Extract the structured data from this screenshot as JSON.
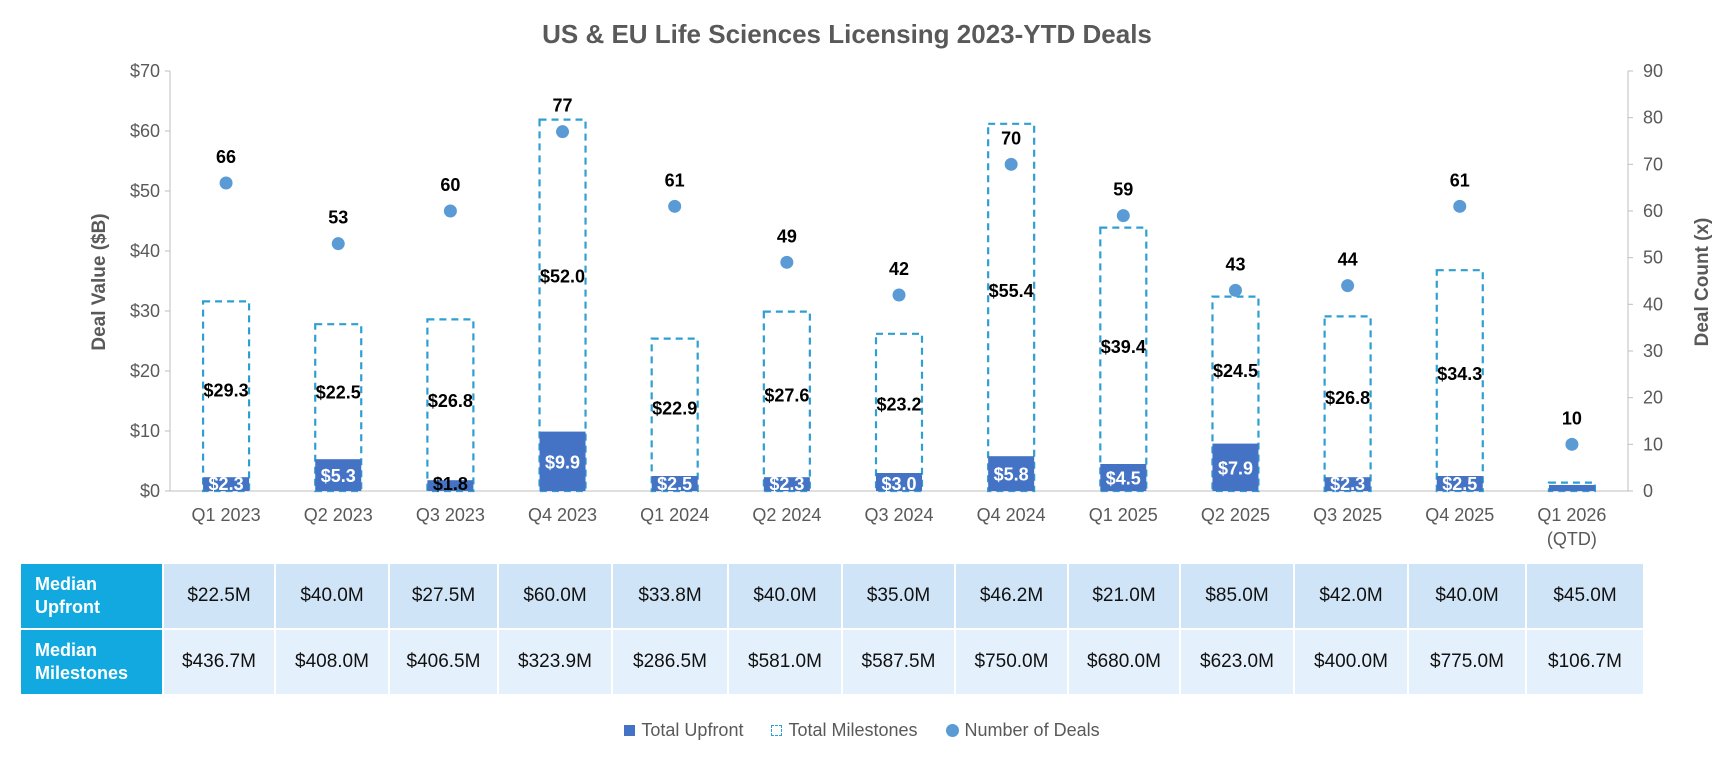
{
  "chart_data": {
    "type": "bar",
    "title": "US & EU Life Sciences Licensing 2023-YTD Deals",
    "ylabel": "Deal Value ($B)",
    "y2label": "Deal Count (x)",
    "ylim": [
      0,
      70
    ],
    "y_ticks": [
      "$0",
      "$10",
      "$20",
      "$30",
      "$40",
      "$50",
      "$60",
      "$70"
    ],
    "y2lim": [
      0,
      90
    ],
    "y2_ticks": [
      "0",
      "10",
      "20",
      "30",
      "40",
      "50",
      "60",
      "70",
      "80",
      "90"
    ],
    "categories": [
      "Q1 2023",
      "Q2 2023",
      "Q3 2023",
      "Q4 2023",
      "Q1 2024",
      "Q2 2024",
      "Q3 2024",
      "Q4 2024",
      "Q1 2025",
      "Q2 2025",
      "Q3 2025",
      "Q4 2025",
      "Q1 2026\n(QTD)"
    ],
    "series": [
      {
        "name": "Total Upfront",
        "axis": "left",
        "values": [
          2.3,
          5.3,
          1.8,
          9.9,
          2.5,
          2.3,
          3.0,
          5.8,
          4.5,
          7.9,
          2.3,
          2.5,
          1.0
        ],
        "labels": [
          "$2.3",
          "$5.3",
          "$1.8",
          "$9.9",
          "$2.5",
          "$2.3",
          "$3.0",
          "$5.8",
          "$4.5",
          "$7.9",
          "$2.3",
          "$2.5",
          ""
        ]
      },
      {
        "name": "Total Milestones",
        "axis": "left",
        "values": [
          29.3,
          22.5,
          26.8,
          52.0,
          22.9,
          27.6,
          23.2,
          55.4,
          39.4,
          24.5,
          26.8,
          34.3,
          0.4
        ],
        "labels": [
          "$29.3",
          "$22.5",
          "$26.8",
          "$52.0",
          "$22.9",
          "$27.6",
          "$23.2",
          "$55.4",
          "$39.4",
          "$24.5",
          "$26.8",
          "$34.3",
          ""
        ]
      },
      {
        "name": "Number of Deals",
        "axis": "right",
        "values": [
          66,
          53,
          60,
          77,
          61,
          49,
          42,
          70,
          59,
          43,
          44,
          61,
          10
        ],
        "labels": [
          "66",
          "53",
          "60",
          "77",
          "61",
          "49",
          "42",
          "70",
          "59",
          "43",
          "44",
          "61",
          "10"
        ]
      }
    ],
    "legend_position": "bottom",
    "colors": {
      "upfront": "#4472c4",
      "milestones": "#2e9fd0",
      "deals": "#5b9bd5",
      "header": "#12a8e0"
    }
  },
  "table": {
    "rows": [
      {
        "label_line1": "Median",
        "label_line2": "Upfront",
        "values": [
          "$22.5M",
          "$40.0M",
          "$27.5M",
          "$60.0M",
          "$33.8M",
          "$40.0M",
          "$35.0M",
          "$46.2M",
          "$21.0M",
          "$85.0M",
          "$42.0M",
          "$40.0M",
          "$45.0M"
        ]
      },
      {
        "label_line1": "Median",
        "label_line2": "Milestones",
        "values": [
          "$436.7M",
          "$408.0M",
          "$406.5M",
          "$323.9M",
          "$286.5M",
          "$581.0M",
          "$587.5M",
          "$750.0M",
          "$680.0M",
          "$623.0M",
          "$400.0M",
          "$775.0M",
          "$106.7M"
        ]
      }
    ]
  },
  "legend": {
    "upfront": "Total Upfront",
    "milestones": "Total Milestones",
    "deals": "Number of Deals"
  }
}
